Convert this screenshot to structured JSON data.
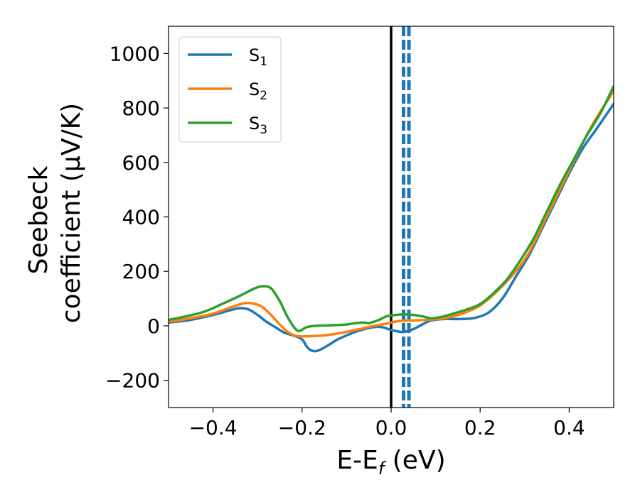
{
  "chart_data": {
    "type": "line",
    "xlabel": "E-E",
    "xlabel_sub": "f",
    "xlabel_unit": " (eV)",
    "ylabel_line1": "Seebeck",
    "ylabel_line2": "coefficient  (μV/K)",
    "xlim": [
      -0.5,
      0.5
    ],
    "ylim": [
      -300,
      1100
    ],
    "x_ticks": [
      -0.4,
      -0.2,
      0.0,
      0.2,
      0.4
    ],
    "x_tick_labels": [
      "−0.4",
      "−0.2",
      "0.0",
      "0.2",
      "0.4"
    ],
    "y_ticks": [
      -200,
      0,
      200,
      400,
      600,
      800,
      1000
    ],
    "y_tick_labels": [
      "−200",
      "0",
      "200",
      "400",
      "600",
      "800",
      "1000"
    ],
    "legend_position": "top-left",
    "grid": false,
    "vertical_lines": [
      {
        "x": 0.0,
        "style": "solid",
        "color": "#000000"
      },
      {
        "x": 0.028,
        "style": "dashed",
        "color": "#1f77b4"
      },
      {
        "x": 0.04,
        "style": "dashed",
        "color": "#1f77b4"
      }
    ],
    "series": [
      {
        "name": "S",
        "name_sub": "1",
        "color": "#1f77b4",
        "points": [
          [
            -0.5,
            12
          ],
          [
            -0.45,
            22
          ],
          [
            -0.4,
            40
          ],
          [
            -0.36,
            58
          ],
          [
            -0.34,
            65
          ],
          [
            -0.32,
            60
          ],
          [
            -0.3,
            40
          ],
          [
            -0.28,
            15
          ],
          [
            -0.26,
            -5
          ],
          [
            -0.24,
            -25
          ],
          [
            -0.22,
            -35
          ],
          [
            -0.2,
            -50
          ],
          [
            -0.19,
            -75
          ],
          [
            -0.18,
            -90
          ],
          [
            -0.17,
            -93
          ],
          [
            -0.16,
            -88
          ],
          [
            -0.14,
            -70
          ],
          [
            -0.12,
            -50
          ],
          [
            -0.1,
            -35
          ],
          [
            -0.08,
            -22
          ],
          [
            -0.06,
            -12
          ],
          [
            -0.04,
            -5
          ],
          [
            -0.02,
            -5
          ],
          [
            0.0,
            -15
          ],
          [
            0.02,
            -22
          ],
          [
            0.03,
            -22
          ],
          [
            0.05,
            -12
          ],
          [
            0.07,
            5
          ],
          [
            0.09,
            20
          ],
          [
            0.12,
            25
          ],
          [
            0.16,
            25
          ],
          [
            0.19,
            30
          ],
          [
            0.22,
            50
          ],
          [
            0.25,
            100
          ],
          [
            0.28,
            180
          ],
          [
            0.31,
            260
          ],
          [
            0.34,
            360
          ],
          [
            0.37,
            460
          ],
          [
            0.4,
            560
          ],
          [
            0.43,
            650
          ],
          [
            0.46,
            720
          ],
          [
            0.5,
            815
          ]
        ]
      },
      {
        "name": "S",
        "name_sub": "2",
        "color": "#ff7f0e",
        "points": [
          [
            -0.5,
            15
          ],
          [
            -0.45,
            28
          ],
          [
            -0.4,
            45
          ],
          [
            -0.36,
            68
          ],
          [
            -0.33,
            83
          ],
          [
            -0.31,
            82
          ],
          [
            -0.29,
            70
          ],
          [
            -0.27,
            40
          ],
          [
            -0.25,
            5
          ],
          [
            -0.23,
            -25
          ],
          [
            -0.21,
            -38
          ],
          [
            -0.18,
            -38
          ],
          [
            -0.15,
            -35
          ],
          [
            -0.12,
            -28
          ],
          [
            -0.1,
            -22
          ],
          [
            -0.08,
            -15
          ],
          [
            -0.06,
            -8
          ],
          [
            -0.04,
            0
          ],
          [
            -0.02,
            5
          ],
          [
            0.0,
            12
          ],
          [
            0.02,
            18
          ],
          [
            0.05,
            20
          ],
          [
            0.08,
            22
          ],
          [
            0.12,
            28
          ],
          [
            0.16,
            45
          ],
          [
            0.2,
            75
          ],
          [
            0.24,
            130
          ],
          [
            0.28,
            200
          ],
          [
            0.31,
            270
          ],
          [
            0.34,
            370
          ],
          [
            0.37,
            470
          ],
          [
            0.4,
            570
          ],
          [
            0.43,
            670
          ],
          [
            0.46,
            760
          ],
          [
            0.5,
            862
          ]
        ]
      },
      {
        "name": "S",
        "name_sub": "3",
        "color": "#2ca02c",
        "points": [
          [
            -0.5,
            22
          ],
          [
            -0.46,
            35
          ],
          [
            -0.42,
            52
          ],
          [
            -0.38,
            80
          ],
          [
            -0.34,
            110
          ],
          [
            -0.31,
            135
          ],
          [
            -0.29,
            145
          ],
          [
            -0.27,
            138
          ],
          [
            -0.25,
            90
          ],
          [
            -0.23,
            25
          ],
          [
            -0.21,
            -18
          ],
          [
            -0.19,
            -5
          ],
          [
            -0.17,
            0
          ],
          [
            -0.14,
            2
          ],
          [
            -0.12,
            3
          ],
          [
            -0.1,
            5
          ],
          [
            -0.08,
            10
          ],
          [
            -0.06,
            12
          ],
          [
            -0.05,
            10
          ],
          [
            -0.03,
            20
          ],
          [
            -0.01,
            35
          ],
          [
            0.01,
            40
          ],
          [
            0.03,
            42
          ],
          [
            0.05,
            40
          ],
          [
            0.07,
            35
          ],
          [
            0.09,
            28
          ],
          [
            0.11,
            32
          ],
          [
            0.14,
            45
          ],
          [
            0.17,
            60
          ],
          [
            0.2,
            80
          ],
          [
            0.23,
            120
          ],
          [
            0.26,
            170
          ],
          [
            0.29,
            240
          ],
          [
            0.32,
            320
          ],
          [
            0.35,
            420
          ],
          [
            0.38,
            520
          ],
          [
            0.41,
            610
          ],
          [
            0.44,
            700
          ],
          [
            0.47,
            780
          ],
          [
            0.5,
            880
          ]
        ]
      }
    ]
  }
}
